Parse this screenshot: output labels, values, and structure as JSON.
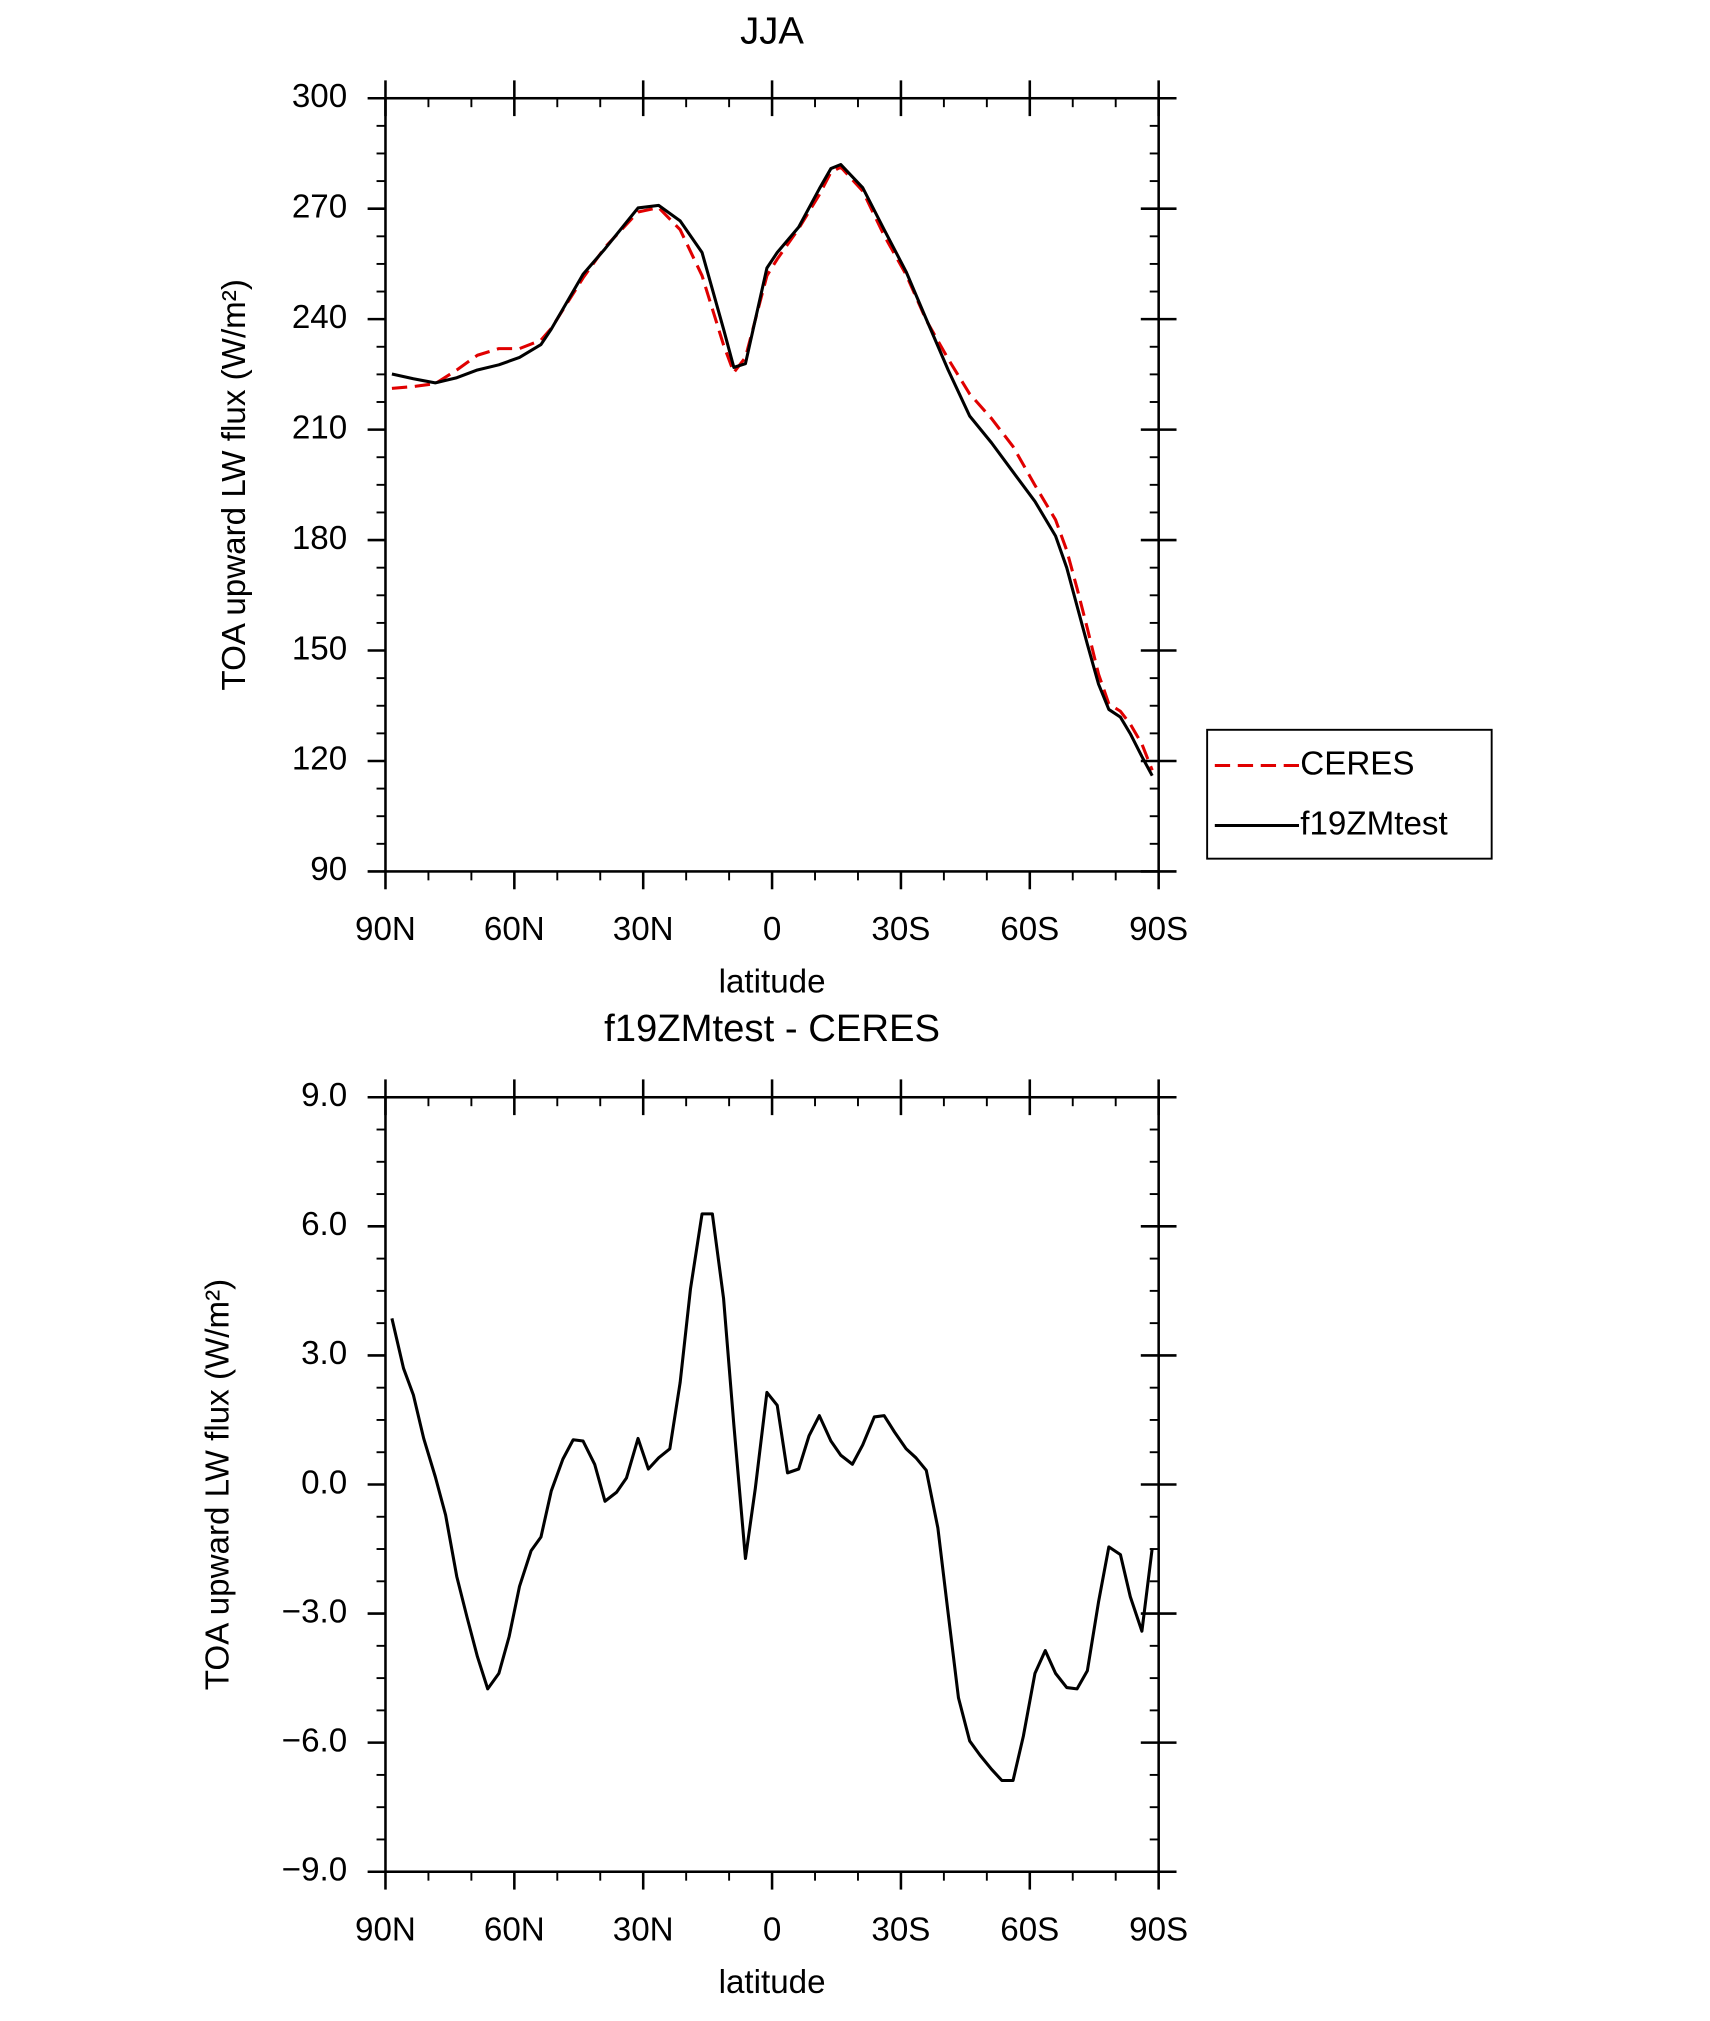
{
  "chart_data": [
    {
      "type": "line",
      "title": "JJA",
      "xlabel": "latitude",
      "ylabel": "TOA upward LW flux (W/m²)",
      "x": [
        88.5,
        83.5,
        78.4,
        73.4,
        68.6,
        63.6,
        58.8,
        53.8,
        51.4,
        44.0,
        38.9,
        31.2,
        26.4,
        21.4,
        16.3,
        11.3,
        8.9,
        6.2,
        1.2,
        -1.2,
        -6.2,
        -11.0,
        -13.7,
        -16.0,
        -21.1,
        -26.1,
        -31.2,
        -35.9,
        -41.0,
        -46.0,
        -51.1,
        -56.1,
        -61.2,
        -66.0,
        -68.6,
        -71.0,
        -73.4,
        -76.0,
        -78.4,
        -81.1,
        -83.4,
        -86.1,
        -88.5
      ],
      "series": [
        {
          "name": "CERES",
          "color": "#e00000",
          "dash": true,
          "values": [
            221.2,
            221.7,
            222.5,
            226.2,
            230.2,
            232.0,
            232.0,
            234.3,
            237.5,
            251.2,
            259.5,
            269.1,
            270.3,
            264.3,
            251.8,
            233.0,
            225.5,
            229.6,
            251.8,
            256.3,
            264.6,
            273.8,
            279.9,
            281.3,
            274.8,
            262.7,
            252.1,
            239.7,
            229.2,
            219.7,
            213.0,
            205.4,
            194.9,
            185.5,
            177.2,
            166.9,
            156.0,
            143.6,
            135.5,
            133.5,
            130.0,
            124.6,
            117.5
          ]
        },
        {
          "name": "f19ZMtest",
          "color": "#000000",
          "dash": false,
          "values": [
            225.1,
            223.8,
            222.7,
            224.1,
            226.2,
            227.6,
            229.6,
            233.1,
            237.3,
            252.2,
            259.1,
            270.2,
            270.9,
            266.7,
            258.1,
            237.3,
            226.9,
            227.9,
            253.9,
            258.1,
            265.0,
            275.4,
            280.9,
            282.0,
            275.7,
            264.3,
            252.9,
            240.0,
            226.2,
            213.7,
            206.4,
            198.5,
            190.5,
            181.1,
            172.5,
            162.1,
            151.7,
            140.9,
            134.0,
            131.9,
            127.4,
            121.2,
            116.0
          ]
        }
      ],
      "xlim": [
        90,
        -90
      ],
      "xticks": [
        {
          "value": 90,
          "label": "90N"
        },
        {
          "value": 60,
          "label": "60N"
        },
        {
          "value": 30,
          "label": "30N"
        },
        0,
        {
          "value": -30,
          "label": "30S"
        },
        {
          "value": -60,
          "label": "60S"
        },
        {
          "value": -90,
          "label": "90S"
        }
      ],
      "ylim": [
        90,
        300
      ],
      "yticks": [
        90,
        120,
        150,
        180,
        210,
        240,
        270,
        300
      ],
      "legend": "right"
    },
    {
      "type": "line",
      "title": "f19ZMtest - CERES",
      "xlabel": "latitude",
      "ylabel": "TOA upward LW flux (W/m²)",
      "x": [
        88.5,
        85.8,
        83.5,
        81.1,
        78.4,
        76.0,
        73.4,
        71.0,
        68.6,
        66.2,
        63.6,
        61.2,
        58.8,
        56.1,
        53.8,
        51.4,
        48.7,
        46.3,
        44.0,
        41.3,
        38.9,
        36.2,
        33.9,
        31.2,
        28.8,
        26.4,
        23.8,
        21.4,
        19.0,
        16.3,
        13.9,
        11.3,
        8.9,
        6.2,
        3.9,
        1.2,
        -1.2,
        -3.6,
        -6.2,
        -8.6,
        -11.0,
        -13.7,
        -16.0,
        -18.7,
        -21.1,
        -23.8,
        -26.1,
        -28.5,
        -31.2,
        -33.5,
        -35.9,
        -38.6,
        -41.0,
        -43.4,
        -46.0,
        -48.4,
        -51.1,
        -53.5,
        -56.1,
        -58.5,
        -61.2,
        -63.6,
        -66.0,
        -68.6,
        -71.0,
        -73.4,
        -76.0,
        -78.4,
        -81.1,
        -83.4,
        -86.1,
        -88.5
      ],
      "series": [
        {
          "name": "f19ZMtest - CERES",
          "color": "#000000",
          "dash": false,
          "values": [
            3.86,
            2.7,
            2.08,
            1.07,
            0.18,
            -0.71,
            -2.14,
            -3.09,
            -4.0,
            -4.75,
            -4.39,
            -3.53,
            -2.37,
            -1.54,
            -1.22,
            -0.15,
            0.59,
            1.04,
            1.01,
            0.47,
            -0.39,
            -0.18,
            0.15,
            1.07,
            0.36,
            0.62,
            0.83,
            2.37,
            4.54,
            6.29,
            6.29,
            4.33,
            1.39,
            -1.72,
            -0.09,
            2.14,
            1.84,
            0.27,
            0.36,
            1.13,
            1.6,
            1.01,
            0.68,
            0.47,
            0.92,
            1.57,
            1.6,
            1.22,
            0.83,
            0.62,
            0.33,
            -1.01,
            -3.0,
            -4.96,
            -5.96,
            -6.29,
            -6.62,
            -6.88,
            -6.88,
            -5.85,
            -4.39,
            -3.86,
            -4.39,
            -4.72,
            -4.75,
            -4.33,
            -2.73,
            -1.45,
            -1.63,
            -2.61,
            -3.41,
            -1.48
          ]
        }
      ],
      "xlim": [
        90,
        -90
      ],
      "xticks": [
        {
          "value": 90,
          "label": "90N"
        },
        {
          "value": 60,
          "label": "60N"
        },
        {
          "value": 30,
          "label": "30N"
        },
        0,
        {
          "value": -30,
          "label": "30S"
        },
        {
          "value": -60,
          "label": "60S"
        },
        {
          "value": -90,
          "label": "90S"
        }
      ],
      "ylim": [
        -9,
        9
      ],
      "yticks": [
        {
          "value": -9,
          "label": "−9.0"
        },
        {
          "value": -6,
          "label": "−6.0"
        },
        {
          "value": -3,
          "label": "−3.0"
        },
        {
          "value": 0,
          "label": "0.0"
        },
        {
          "value": 3,
          "label": "3.0"
        },
        {
          "value": 6,
          "label": "6.0"
        },
        {
          "value": 9,
          "label": "9.0"
        }
      ]
    }
  ]
}
